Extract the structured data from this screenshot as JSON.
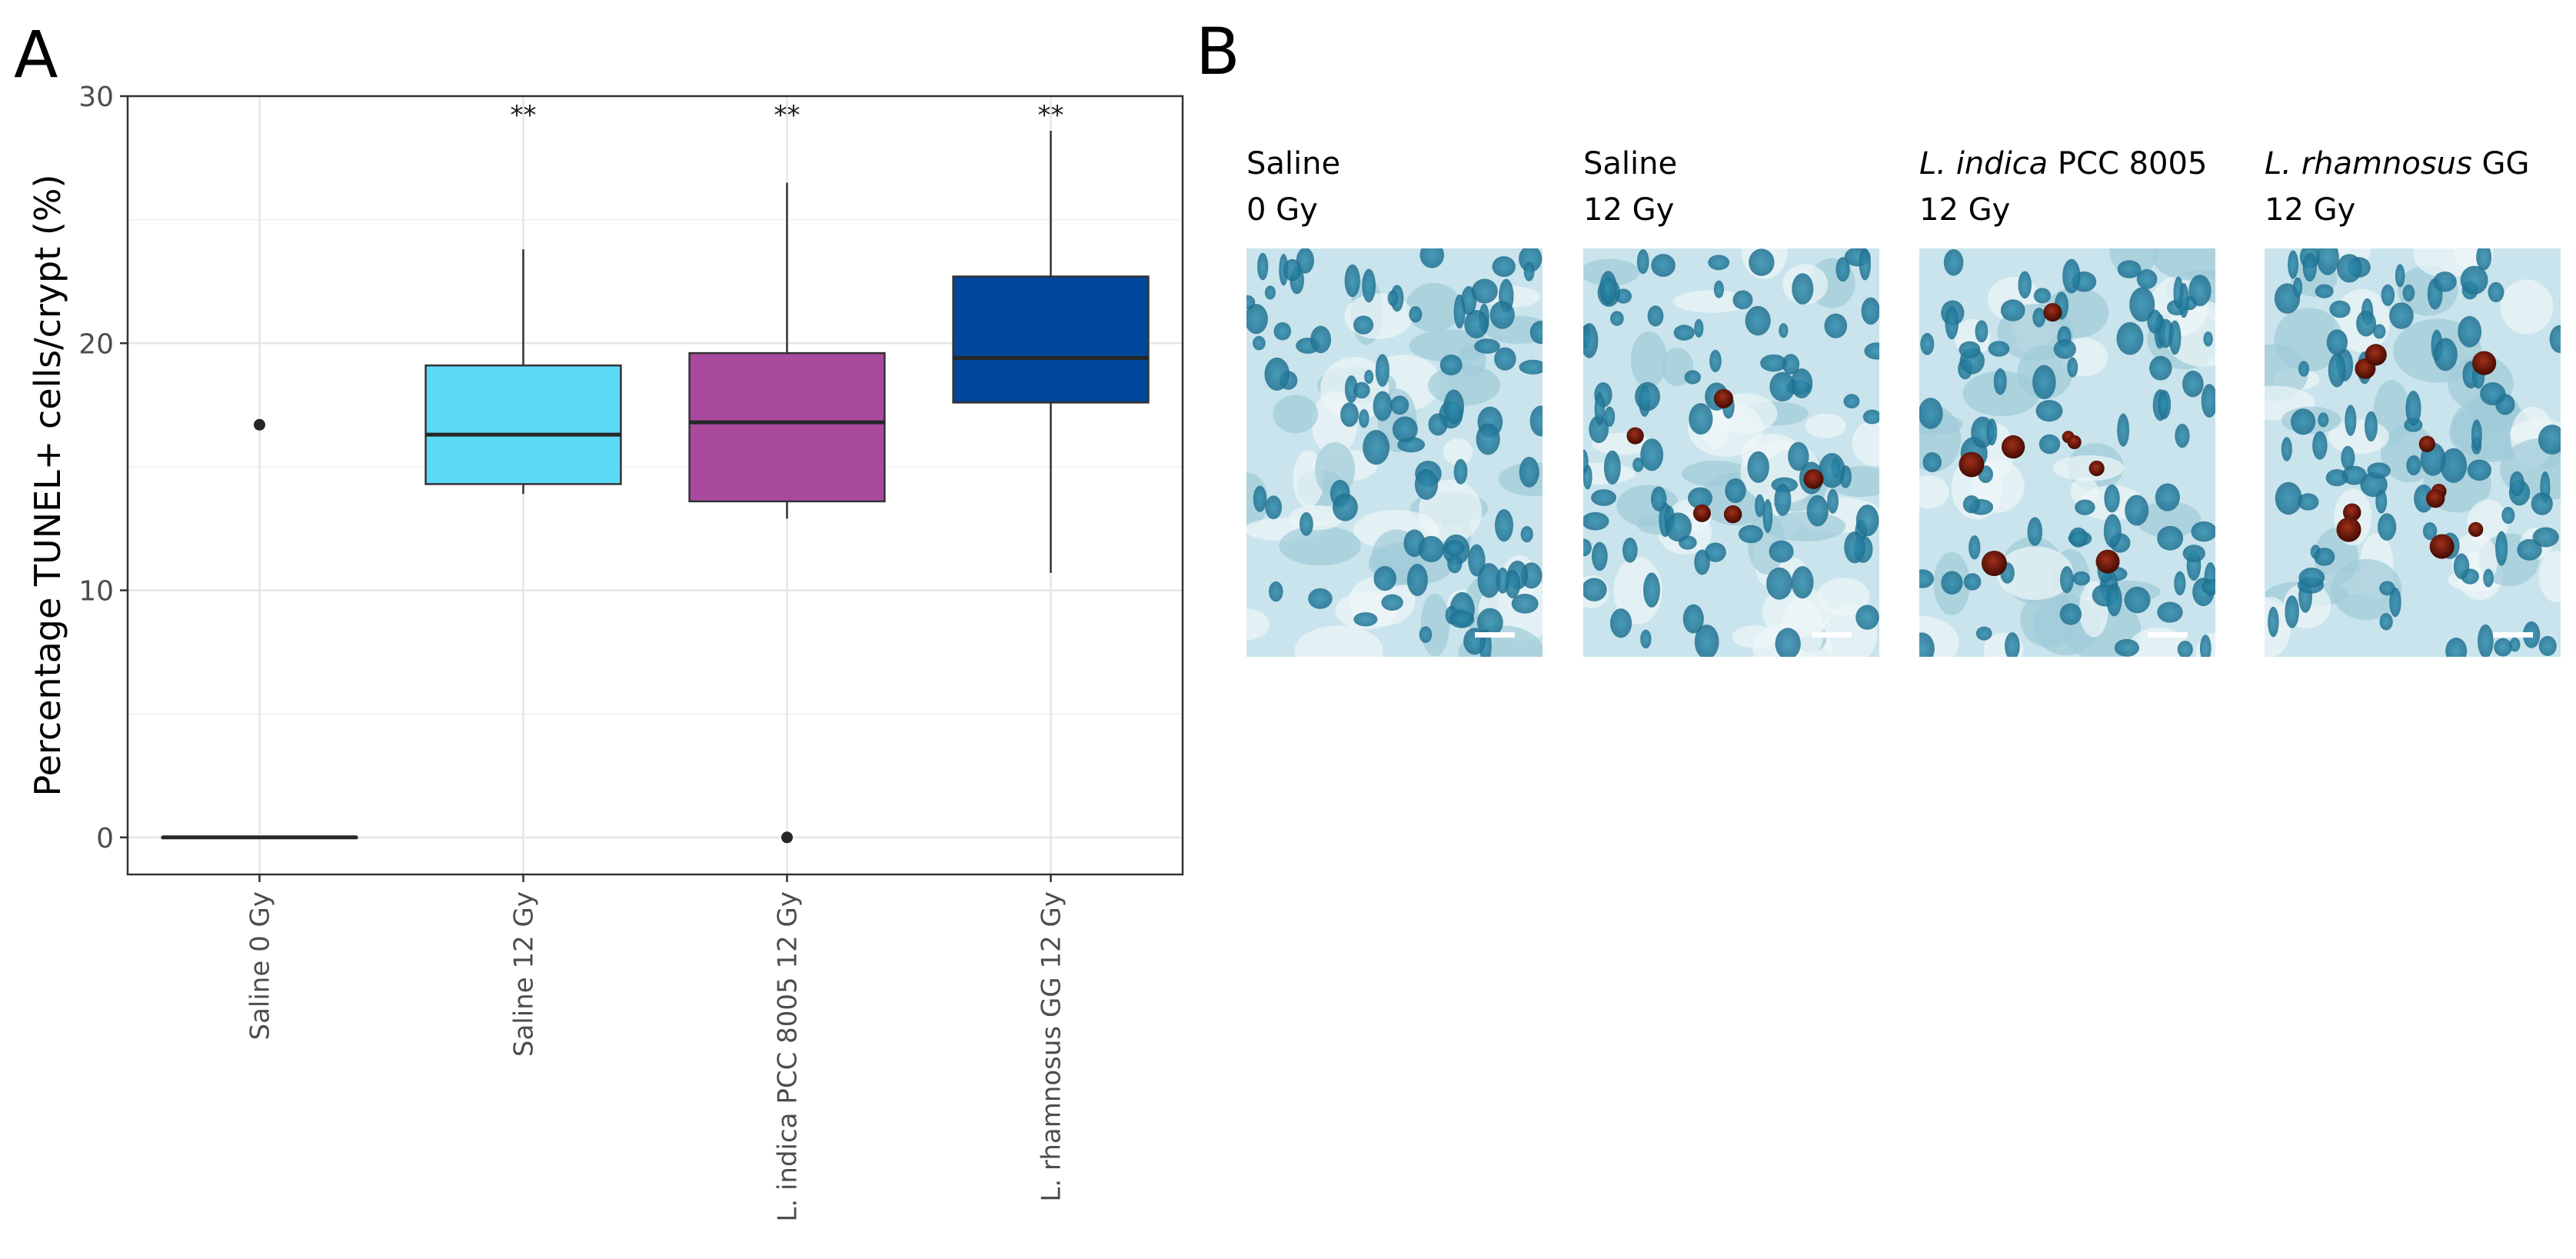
{
  "panels": {
    "a": "A",
    "b": "B"
  },
  "chart_data": {
    "type": "boxplot",
    "title": "",
    "xlabel": "",
    "ylabel": "Percentage TUNEL+ cells/crypt (%)",
    "ylim": [
      -1.5,
      30
    ],
    "yticks": [
      0,
      10,
      20,
      30
    ],
    "grid": true,
    "categories": [
      "Saline 0 Gy",
      "Saline 12 Gy",
      "L. indica PCC 8005 12 Gy",
      "L. rhamnosus GG 12 Gy"
    ],
    "boxes": [
      {
        "category": "Saline 0 Gy",
        "color": "#333333",
        "min": 0,
        "q1": 0,
        "median": 0,
        "q3": 0,
        "max": 0,
        "outliers": [
          16.7
        ],
        "significance": ""
      },
      {
        "category": "Saline 12 Gy",
        "color": "#5BDAF7",
        "min": 13.9,
        "q1": 14.3,
        "median": 16.3,
        "q3": 19.1,
        "max": 23.8,
        "outliers": [],
        "significance": "**"
      },
      {
        "category": "L. indica PCC 8005 12 Gy",
        "color": "#A94A9F",
        "min": 12.9,
        "q1": 13.6,
        "median": 16.8,
        "q3": 19.6,
        "max": 26.5,
        "outliers": [
          0
        ],
        "significance": "**"
      },
      {
        "category": "L. rhamnosus GG 12 Gy",
        "color": "#00469A",
        "min": 10.7,
        "q1": 17.6,
        "median": 19.4,
        "q3": 22.7,
        "max": 28.6,
        "outliers": [],
        "significance": "**"
      }
    ]
  },
  "micrographs": [
    {
      "caption_line1": "Saline",
      "caption_line1_italic": "",
      "caption_line2": "0 Gy",
      "caption_line3": ""
    },
    {
      "caption_line1": "Saline",
      "caption_line1_italic": "",
      "caption_line2": "12 Gy",
      "caption_line3": ""
    },
    {
      "caption_line1": " PCC 8005",
      "caption_line1_italic": "L. indica",
      "caption_line2": "12 Gy",
      "caption_line3": ""
    },
    {
      "caption_line1": " GG",
      "caption_line1_italic": "L. rhamnosus",
      "caption_line2": "12 Gy",
      "caption_line3": ""
    }
  ]
}
